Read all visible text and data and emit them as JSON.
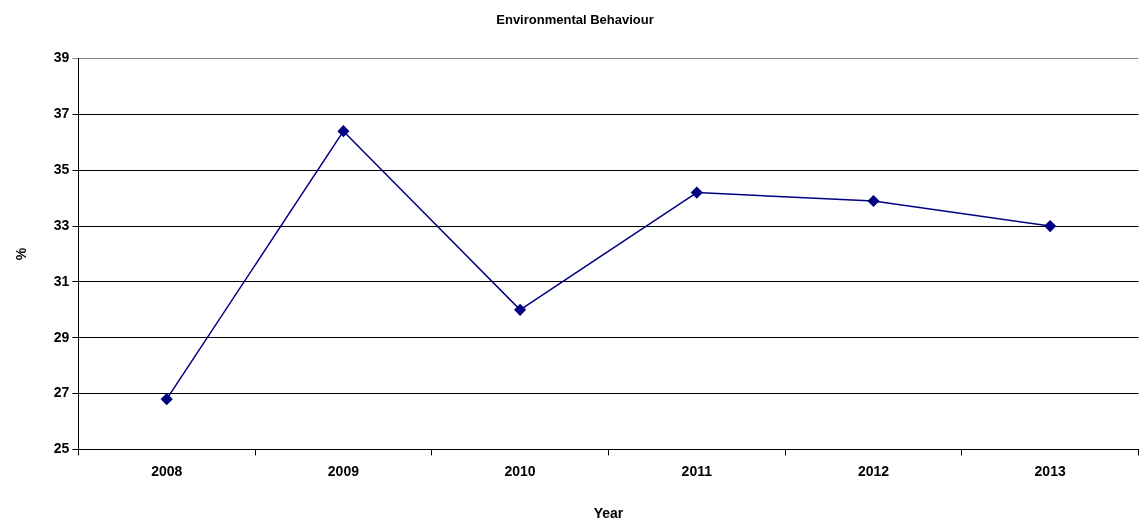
{
  "chart_data": {
    "type": "line",
    "title": "Environmental Behaviour",
    "xlabel": "Year",
    "ylabel": "%",
    "categories": [
      "2008",
      "2009",
      "2010",
      "2011",
      "2012",
      "2013"
    ],
    "series": [
      {
        "color": "#000080",
        "values": [
          26.8,
          36.4,
          30.0,
          34.2,
          33.9,
          33.0
        ]
      }
    ],
    "ylim": [
      25,
      39
    ],
    "yticks": [
      25,
      27,
      29,
      31,
      33,
      35,
      37,
      39
    ],
    "grid": "y",
    "legend": false,
    "marker": "diamond",
    "line_style": "solid"
  }
}
